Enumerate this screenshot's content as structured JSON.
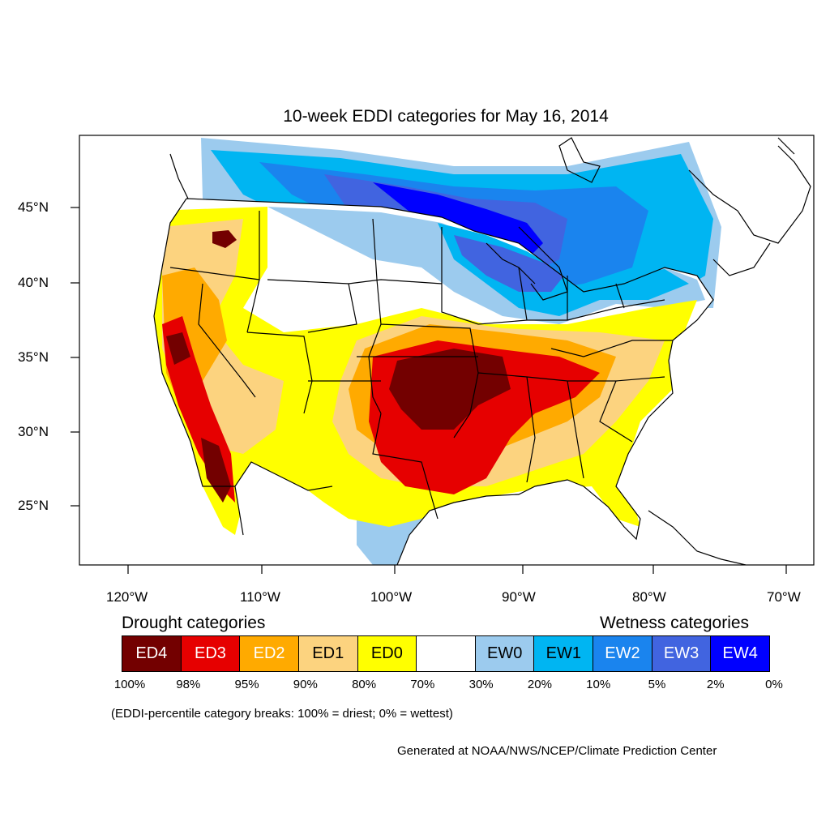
{
  "title": "10-week EDDI categories for May 16, 2014",
  "axes": {
    "lon_labels": [
      "120°W",
      "110°W",
      "100°W",
      "90°W",
      "80°W",
      "70°W"
    ],
    "lat_labels": [
      "45°N",
      "40°N",
      "35°N",
      "30°N",
      "25°N"
    ]
  },
  "legend": {
    "drought_heading": "Drought categories",
    "wetness_heading": "Wetness categories",
    "categories": [
      {
        "label": "ED4",
        "color": "#730000",
        "text_color": "#ffffff"
      },
      {
        "label": "ED3",
        "color": "#e60000",
        "text_color": "#ffffff"
      },
      {
        "label": "ED2",
        "color": "#ffaa00",
        "text_color": "#ffffff"
      },
      {
        "label": "ED1",
        "color": "#fcd37f",
        "text_color": "#000000"
      },
      {
        "label": "ED0",
        "color": "#ffff00",
        "text_color": "#000000"
      },
      {
        "label": "",
        "color": "#ffffff",
        "text_color": "#000000"
      },
      {
        "label": "EW0",
        "color": "#9ccbee",
        "text_color": "#000000"
      },
      {
        "label": "EW1",
        "color": "#00b5f2",
        "text_color": "#000000"
      },
      {
        "label": "EW2",
        "color": "#1a84ee",
        "text_color": "#ffffff"
      },
      {
        "label": "EW3",
        "color": "#4164e0",
        "text_color": "#ffffff"
      },
      {
        "label": "EW4",
        "color": "#0000ff",
        "text_color": "#ffffff"
      }
    ],
    "breaks": [
      "100%",
      "98%",
      "95%",
      "90%",
      "80%",
      "70%",
      "30%",
      "20%",
      "10%",
      "5%",
      "2%",
      "0%"
    ]
  },
  "note": "(EDDI-percentile category breaks: 100% = driest; 0% = wettest)",
  "credit": "Generated at NOAA/NWS/NCEP/Climate Prediction Center"
}
